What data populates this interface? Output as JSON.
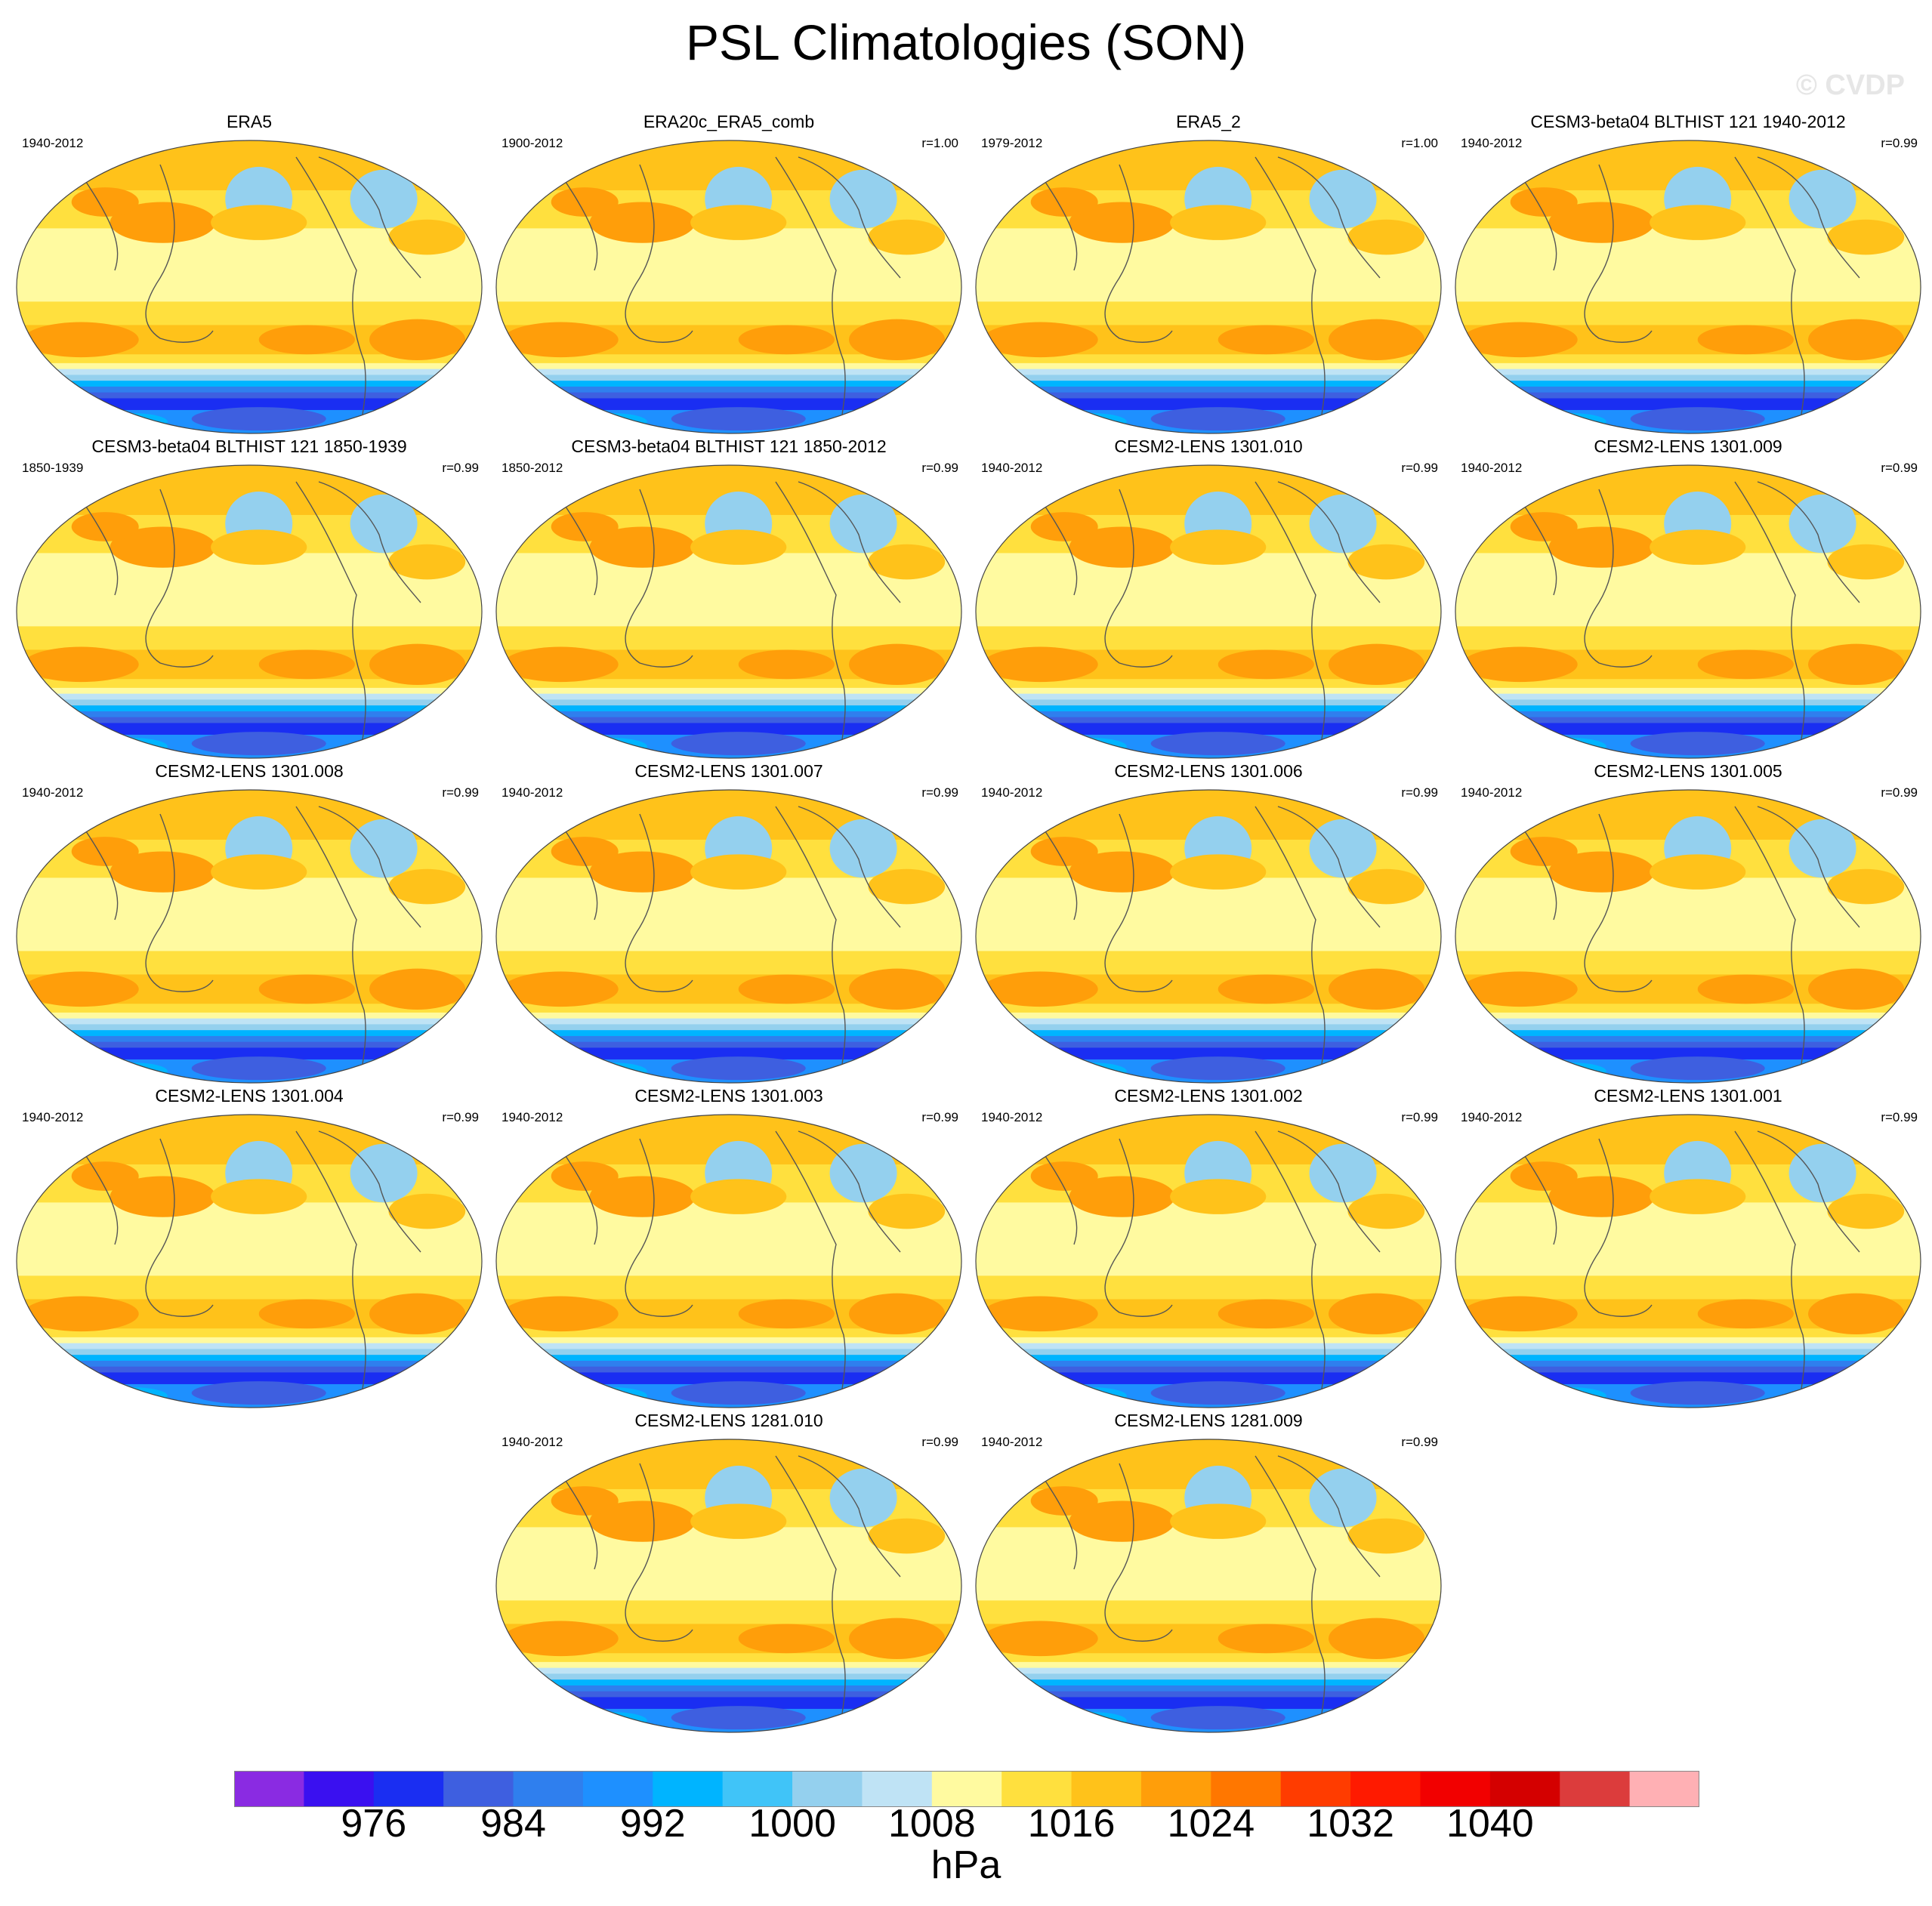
{
  "title": "PSL Climatologies (SON)",
  "watermark": "© CVDP",
  "panels": [
    {
      "title": "ERA5",
      "years": "1940-2012",
      "r": ""
    },
    {
      "title": "ERA20c_ERA5_comb",
      "years": "1900-2012",
      "r": "r=1.00"
    },
    {
      "title": "ERA5_2",
      "years": "1979-2012",
      "r": "r=1.00"
    },
    {
      "title": "CESM3-beta04 BLTHIST 121 1940-2012",
      "years": "1940-2012",
      "r": "r=0.99"
    },
    {
      "title": "CESM3-beta04 BLTHIST 121 1850-1939",
      "years": "1850-1939",
      "r": "r=0.99"
    },
    {
      "title": "CESM3-beta04 BLTHIST 121 1850-2012",
      "years": "1850-2012",
      "r": "r=0.99"
    },
    {
      "title": "CESM2-LENS 1301.010",
      "years": "1940-2012",
      "r": "r=0.99"
    },
    {
      "title": "CESM2-LENS 1301.009",
      "years": "1940-2012",
      "r": "r=0.99"
    },
    {
      "title": "CESM2-LENS 1301.008",
      "years": "1940-2012",
      "r": "r=0.99"
    },
    {
      "title": "CESM2-LENS 1301.007",
      "years": "1940-2012",
      "r": "r=0.99"
    },
    {
      "title": "CESM2-LENS 1301.006",
      "years": "1940-2012",
      "r": "r=0.99"
    },
    {
      "title": "CESM2-LENS 1301.005",
      "years": "1940-2012",
      "r": "r=0.99"
    },
    {
      "title": "CESM2-LENS 1301.004",
      "years": "1940-2012",
      "r": "r=0.99"
    },
    {
      "title": "CESM2-LENS 1301.003",
      "years": "1940-2012",
      "r": "r=0.99"
    },
    {
      "title": "CESM2-LENS 1301.002",
      "years": "1940-2012",
      "r": "r=0.99"
    },
    {
      "title": "CESM2-LENS 1301.001",
      "years": "1940-2012",
      "r": "r=0.99"
    },
    {
      "title": "CESM2-LENS 1281.010",
      "years": "1940-2012",
      "r": "r=0.99"
    },
    {
      "title": "CESM2-LENS 1281.009",
      "years": "1940-2012",
      "r": "r=0.99"
    }
  ],
  "colorbar": {
    "colors": [
      "#8a2be2",
      "#3a10f0",
      "#1a2ef2",
      "#3e5fe0",
      "#2f7fee",
      "#1e90ff",
      "#00b4ff",
      "#40c4f8",
      "#94d0ee",
      "#bfe3f5",
      "#fffaa0",
      "#ffe03e",
      "#ffc21a",
      "#ff9e0a",
      "#ff7700",
      "#ff3c00",
      "#ff1a00",
      "#f20000",
      "#d40000",
      "#dc3c3c",
      "#ffb0b4"
    ],
    "tick_labels": [
      "976",
      "984",
      "992",
      "1000",
      "1008",
      "1016",
      "1024",
      "1032",
      "1040"
    ],
    "units": "hPa"
  }
}
